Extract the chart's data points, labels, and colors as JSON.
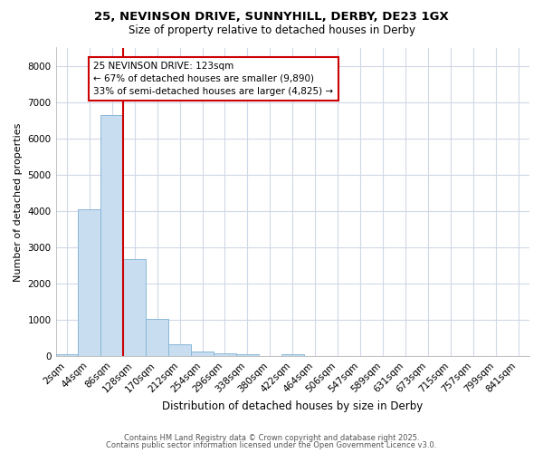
{
  "title_line1": "25, NEVINSON DRIVE, SUNNYHILL, DERBY, DE23 1GX",
  "title_line2": "Size of property relative to detached houses in Derby",
  "xlabel": "Distribution of detached houses by size in Derby",
  "ylabel": "Number of detached properties",
  "categories": [
    "2sqm",
    "44sqm",
    "86sqm",
    "128sqm",
    "170sqm",
    "212sqm",
    "254sqm",
    "296sqm",
    "338sqm",
    "380sqm",
    "422sqm",
    "464sqm",
    "506sqm",
    "547sqm",
    "589sqm",
    "631sqm",
    "673sqm",
    "715sqm",
    "757sqm",
    "799sqm",
    "841sqm"
  ],
  "bar_heights": [
    55,
    4050,
    6650,
    2680,
    1020,
    330,
    130,
    90,
    65,
    0,
    65,
    0,
    0,
    0,
    0,
    0,
    0,
    0,
    0,
    0,
    0
  ],
  "bar_color": "#c8ddf0",
  "bar_edgecolor": "#89b8d8",
  "bg_color": "#ffffff",
  "grid_color": "#d0d8e8",
  "vline_color": "#cc0000",
  "annotation_text": "25 NEVINSON DRIVE: 123sqm\n← 67% of detached houses are smaller (9,890)\n33% of semi-detached houses are larger (4,825) →",
  "annotation_box_facecolor": "#ffffff",
  "annotation_box_edgecolor": "#cc0000",
  "ylim": [
    0,
    8500
  ],
  "yticks": [
    0,
    1000,
    2000,
    3000,
    4000,
    5000,
    6000,
    7000,
    8000
  ],
  "footer_line1": "Contains HM Land Registry data © Crown copyright and database right 2025.",
  "footer_line2": "Contains public sector information licensed under the Open Government Licence v3.0."
}
